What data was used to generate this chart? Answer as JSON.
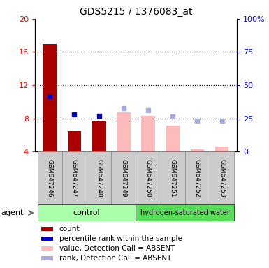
{
  "title": "GDS5215 / 1376083_at",
  "samples": [
    "GSM647246",
    "GSM647247",
    "GSM647248",
    "GSM647249",
    "GSM647250",
    "GSM647251",
    "GSM647252",
    "GSM647253"
  ],
  "bar_present_values": [
    17.0,
    6.5,
    7.6,
    null,
    null,
    null,
    null,
    null
  ],
  "bar_absent_values": [
    null,
    null,
    null,
    8.7,
    8.3,
    7.1,
    4.3,
    4.6
  ],
  "dot_rank_present": [
    10.7,
    8.5,
    8.3,
    null,
    null,
    null,
    null,
    null
  ],
  "dot_rank_absent": [
    null,
    null,
    null,
    9.2,
    9.0,
    8.2,
    7.7,
    7.7
  ],
  "ylim_left": [
    4,
    20
  ],
  "ylim_right": [
    0,
    100
  ],
  "yticks_left": [
    4,
    8,
    12,
    16,
    20
  ],
  "yticks_right": [
    0,
    25,
    50,
    75,
    100
  ],
  "ytick_labels_right": [
    "0",
    "25",
    "50",
    "75",
    "100%"
  ],
  "hlines": [
    8,
    12,
    16
  ],
  "bar_present_color": "#aa0000",
  "bar_absent_color": "#ffbbbb",
  "dot_present_color": "#0000cc",
  "dot_absent_color": "#aaaadd",
  "legend_labels": [
    "count",
    "percentile rank within the sample",
    "value, Detection Call = ABSENT",
    "rank, Detection Call = ABSENT"
  ],
  "legend_colors": [
    "#aa0000",
    "#0000cc",
    "#ffbbbb",
    "#aaaadd"
  ],
  "control_color": "#aaffaa",
  "hydrogen_color": "#55dd55",
  "bar_width": 0.55
}
